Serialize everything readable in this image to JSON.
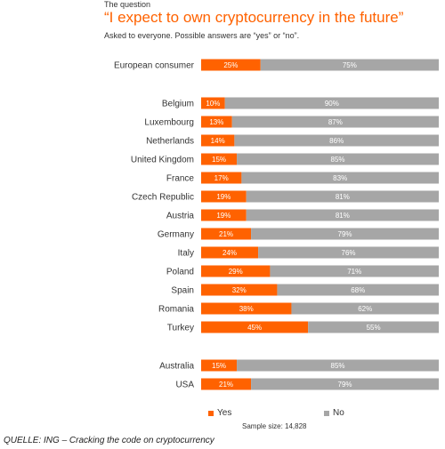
{
  "header": {
    "kicker": "The question",
    "title": "“I expect to own cryptocurrency in the future”",
    "subtitle": "Asked to everyone. Possible answers are “yes” or “no”."
  },
  "chart_data": {
    "type": "bar",
    "orientation": "horizontal",
    "stacked": true,
    "categories": [
      "European consumer",
      "Belgium",
      "Luxembourg",
      "Netherlands",
      "United Kingdom",
      "France",
      "Czech Republic",
      "Austria",
      "Germany",
      "Italy",
      "Poland",
      "Spain",
      "Romania",
      "Turkey",
      "Australia",
      "USA"
    ],
    "groups_after": [
      "European consumer",
      "Turkey"
    ],
    "series": [
      {
        "name": "Yes",
        "color": "#ff6200",
        "values": [
          25,
          10,
          13,
          14,
          15,
          17,
          19,
          19,
          21,
          24,
          29,
          32,
          38,
          45,
          15,
          21
        ]
      },
      {
        "name": "No",
        "color": "#a6a6a6",
        "values": [
          75,
          90,
          87,
          86,
          85,
          83,
          81,
          81,
          79,
          76,
          71,
          68,
          62,
          55,
          85,
          79
        ]
      }
    ],
    "value_suffix": "%",
    "xlim": [
      0,
      100
    ],
    "grid": false,
    "legend_position": "bottom"
  },
  "legend": {
    "yes_label": "Yes",
    "no_label": "No"
  },
  "sample_size": "Sample size: 14,828",
  "source": "QUELLE: ING – Cracking the code on cryptocurrency"
}
